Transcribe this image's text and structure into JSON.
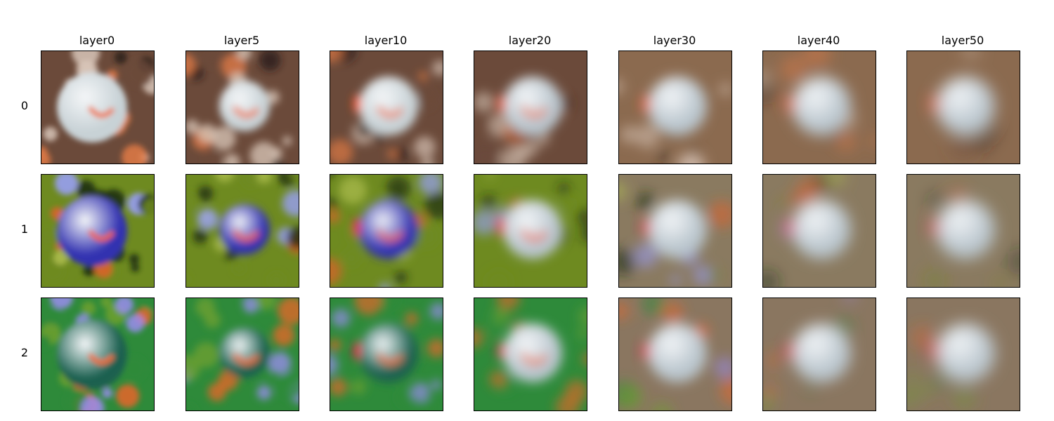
{
  "columns": [
    "layer0",
    "layer5",
    "layer10",
    "layer20",
    "layer30",
    "layer40",
    "layer50"
  ],
  "rows": [
    "0",
    "1",
    "2"
  ],
  "row_palettes": [
    {
      "background": [
        "#6b4a3a",
        "#d8c6b8",
        "#2a1d18",
        "#e07a45"
      ],
      "sphere": "#c8d2d6",
      "accent": "#ee7040",
      "late_bg": "#8b6a4f"
    },
    {
      "background": [
        "#6e8a20",
        "#9aa0ff",
        "#1a2a10",
        "#e0602a",
        "#b0c050"
      ],
      "sphere": "#3030b0",
      "accent": "#f06040",
      "late_bg": "#8a7a60"
    },
    {
      "background": [
        "#2e8a3a",
        "#9a8cf0",
        "#e8652a",
        "#6fa030"
      ],
      "sphere": "#1a6050",
      "accent": "#f06a30",
      "late_bg": "#8a7660"
    }
  ],
  "panel_blur_levels": [
    0,
    0.6,
    1.2,
    1.8,
    2.4,
    3.0,
    3.4
  ]
}
